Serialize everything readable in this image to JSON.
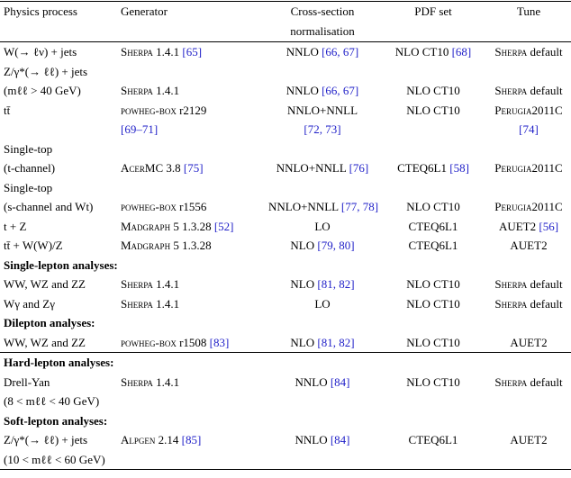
{
  "header": {
    "process": "Physics process",
    "generator": "Generator",
    "xsec": [
      "Cross-section",
      "normalisation"
    ],
    "pdf": "PDF set",
    "tune": "Tune"
  },
  "body": [
    [
      {
        "process": "W(→ ℓν) + jets",
        "generator": {
          "sc": "Sherpa",
          "text": "1.4.1",
          "ref": "[65]"
        },
        "xsec": {
          "text": "NNLO",
          "ref": "[66, 67]"
        },
        "pdf": {
          "text": "NLO CT10",
          "ref": "[68]"
        },
        "tune": {
          "sc": "Sherpa",
          "text": "default"
        }
      },
      {
        "process": "Z/γ*(→ ℓℓ) + jets"
      },
      {
        "process": "(mℓℓ > 40 GeV)",
        "generator": {
          "sc": "Sherpa",
          "text": "1.4.1"
        },
        "xsec": {
          "text": "NNLO",
          "ref": "[66, 67]"
        },
        "pdf": "NLO CT10",
        "tune": {
          "sc": "Sherpa",
          "text": "default"
        }
      },
      {
        "process": "tt̄",
        "generator": {
          "sc": "powheg-box",
          "text": "r2129"
        },
        "xsec": "NNLO+NNLL",
        "pdf": "NLO CT10",
        "tune": {
          "sc": "Perugia2011C"
        }
      },
      {
        "generator": {
          "ref": "[69–71]"
        },
        "xsec": {
          "ref": "[72, 73]"
        },
        "tune": {
          "ref": "[74]"
        }
      },
      {
        "process": "Single-top"
      },
      {
        "process": "(t-channel)",
        "generator": {
          "sc": "AcerMC",
          "text": "3.8",
          "ref": "[75]"
        },
        "xsec": {
          "text": "NNLO+NNLL",
          "ref": "[76]"
        },
        "pdf": {
          "text": "CTEQ6L1",
          "ref": "[58]"
        },
        "tune": {
          "sc": "Perugia2011C"
        }
      },
      {
        "process": "Single-top"
      },
      {
        "process": "(s-channel and Wt)",
        "generator": {
          "sc": "powheg-box",
          "text": "r1556"
        },
        "xsec": {
          "text": "NNLO+NNLL",
          "ref": "[77, 78]"
        },
        "pdf": "NLO CT10",
        "tune": {
          "sc": "Perugia2011C"
        }
      },
      {
        "process": "t + Z",
        "generator": {
          "sc": "Madgraph",
          "text": "5 1.3.28",
          "ref": "[52]"
        },
        "xsec": "LO",
        "pdf": "CTEQ6L1",
        "tune": {
          "text": "AUET2",
          "ref": "[56]"
        }
      },
      {
        "process": "tt̄ + W(W)/Z",
        "generator": {
          "sc": "Madgraph",
          "text": "5 1.3.28"
        },
        "xsec": {
          "text": "NLO",
          "ref": "[79, 80]"
        },
        "pdf": "CTEQ6L1",
        "tune": "AUET2"
      },
      {
        "section": "Single-lepton analyses:"
      },
      {
        "process": "WW, WZ and ZZ",
        "generator": {
          "sc": "Sherpa",
          "text": "1.4.1"
        },
        "xsec": {
          "text": "NLO",
          "ref": "[81, 82]"
        },
        "pdf": "NLO CT10",
        "tune": {
          "sc": "Sherpa",
          "text": "default"
        }
      },
      {
        "process": "Wγ and Zγ",
        "generator": {
          "sc": "Sherpa",
          "text": "1.4.1"
        },
        "xsec": "LO",
        "pdf": "NLO CT10",
        "tune": {
          "sc": "Sherpa",
          "text": "default"
        }
      },
      {
        "section": "Dilepton analyses:"
      },
      {
        "process": "WW, WZ and ZZ",
        "generator": {
          "sc": "powheg-box",
          "text": "r1508",
          "ref": "[83]"
        },
        "xsec": {
          "text": "NLO",
          "ref": "[81, 82]"
        },
        "pdf": "NLO CT10",
        "tune": "AUET2"
      }
    ],
    [
      {
        "section": "Hard-lepton analyses:"
      },
      {
        "process": "Drell-Yan",
        "generator": {
          "sc": "Sherpa",
          "text": "1.4.1"
        },
        "xsec": {
          "text": "NNLO",
          "ref": "[84]"
        },
        "pdf": "NLO CT10",
        "tune": {
          "sc": "Sherpa",
          "text": "default"
        }
      },
      {
        "process": "(8 < mℓℓ < 40 GeV)"
      },
      {
        "section": "Soft-lepton analyses:"
      },
      {
        "process": "Z/γ*(→ ℓℓ) + jets",
        "generator": {
          "sc": "Alpgen",
          "text": "2.14",
          "ref": "[85]"
        },
        "xsec": {
          "text": "NNLO",
          "ref": "[84]"
        },
        "pdf": "CTEQ6L1",
        "tune": "AUET2"
      },
      {
        "process": "(10 < mℓℓ < 60 GeV)"
      }
    ]
  ]
}
